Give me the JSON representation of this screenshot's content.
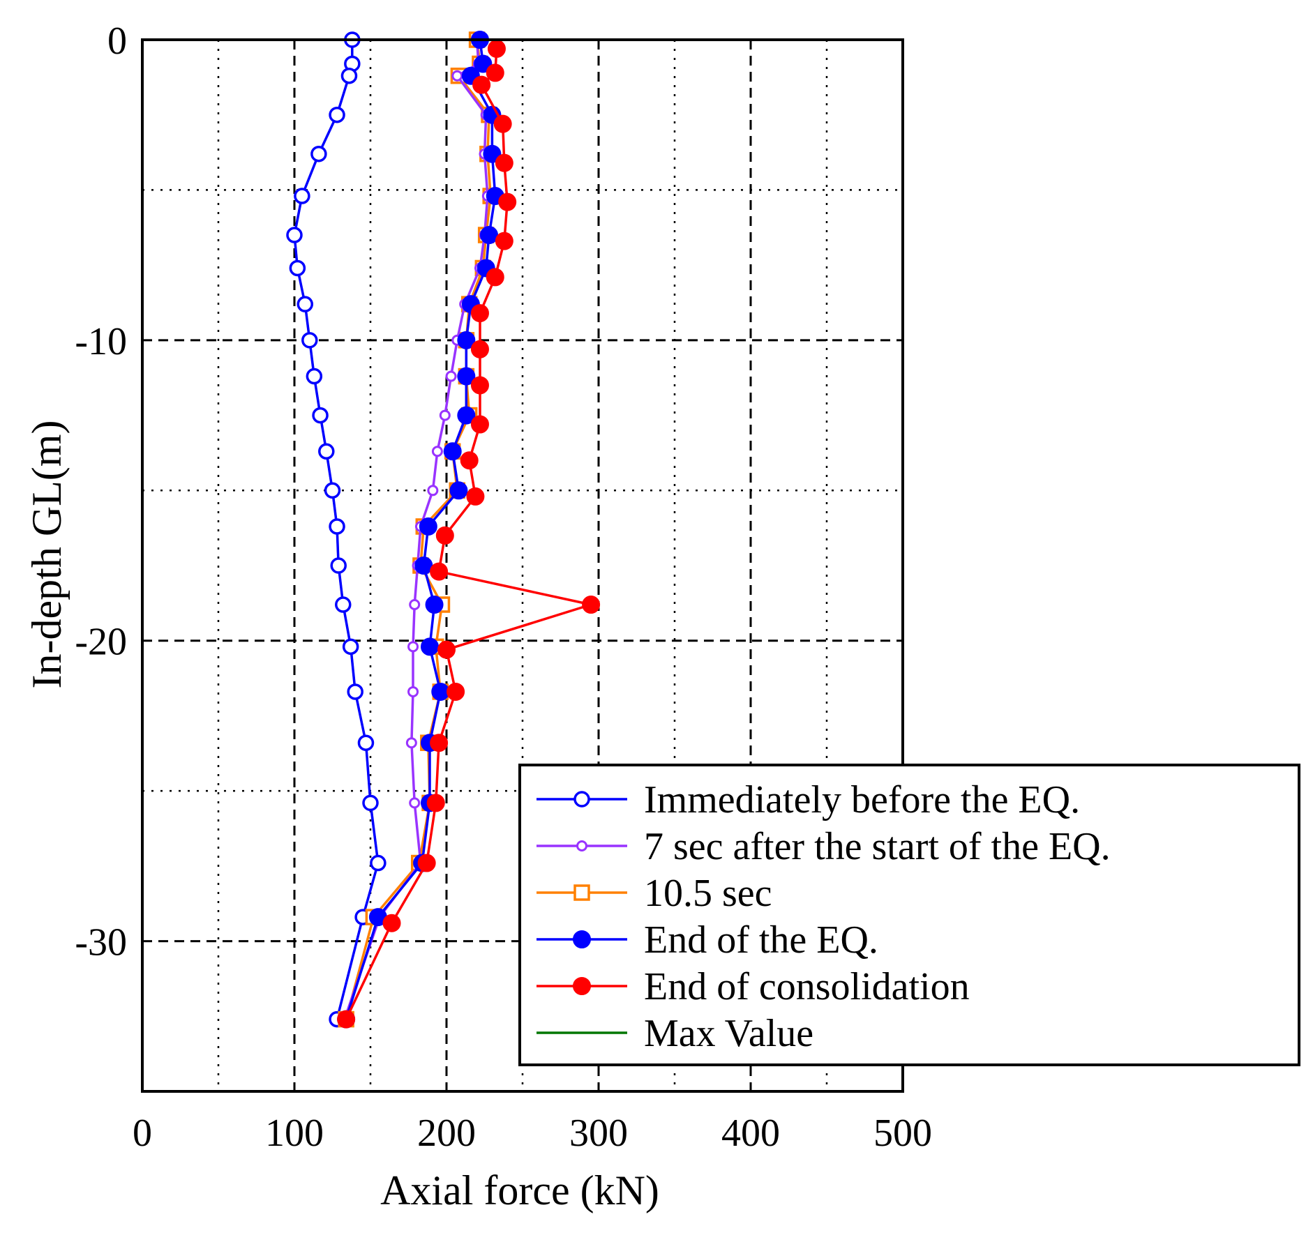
{
  "chart_data": {
    "type": "line",
    "title": "",
    "xlabel": "Axial force (kN)",
    "ylabel": "In-depth GL(m)",
    "xlim": [
      0,
      500
    ],
    "ylim": [
      -35,
      0
    ],
    "xticks": [
      "0",
      "100",
      "200",
      "300",
      "400",
      "500"
    ],
    "yticks": [
      "0",
      "-10",
      "-20",
      "-30"
    ],
    "legend_position": "bottom-right",
    "series": [
      {
        "name": "Immediately before the EQ.",
        "color": "#0000ff",
        "marker": "open-circle",
        "points": [
          [
            138,
            0
          ],
          [
            138,
            -0.8
          ],
          [
            136,
            -1.2
          ],
          [
            128,
            -2.5
          ],
          [
            116,
            -3.8
          ],
          [
            105,
            -5.2
          ],
          [
            100,
            -6.5
          ],
          [
            102,
            -7.6
          ],
          [
            107,
            -8.8
          ],
          [
            110,
            -10
          ],
          [
            113,
            -11.2
          ],
          [
            117,
            -12.5
          ],
          [
            121,
            -13.7
          ],
          [
            125,
            -15
          ],
          [
            128,
            -16.2
          ],
          [
            129,
            -17.5
          ],
          [
            132,
            -18.8
          ],
          [
            137,
            -20.2
          ],
          [
            140,
            -21.7
          ],
          [
            147,
            -23.4
          ],
          [
            150,
            -25.4
          ],
          [
            155,
            -27.4
          ],
          [
            145,
            -29.2
          ],
          [
            128,
            -32.6
          ]
        ]
      },
      {
        "name": "7 sec after the start of the EQ.",
        "color": "#9933ff",
        "marker": "small-open-circle",
        "points": [
          [
            220,
            0
          ],
          [
            221,
            -0.8
          ],
          [
            207,
            -1.2
          ],
          [
            226,
            -2.5
          ],
          [
            225,
            -3.8
          ],
          [
            227,
            -5.2
          ],
          [
            225,
            -6.5
          ],
          [
            222,
            -7.6
          ],
          [
            212,
            -8.8
          ],
          [
            207,
            -10
          ],
          [
            203,
            -11.2
          ],
          [
            199,
            -12.5
          ],
          [
            194,
            -13.7
          ],
          [
            191,
            -15
          ],
          [
            183,
            -16.2
          ],
          [
            181,
            -17.5
          ],
          [
            179,
            -18.8
          ],
          [
            178,
            -20.2
          ],
          [
            178,
            -21.7
          ],
          [
            177,
            -23.4
          ],
          [
            179,
            -25.4
          ],
          [
            183,
            -27.4
          ],
          [
            156,
            -29.2
          ],
          [
            133,
            -32.6
          ]
        ]
      },
      {
        "name": "10.5 sec",
        "color": "#ff8000",
        "marker": "open-square",
        "points": [
          [
            220,
            0
          ],
          [
            222,
            -0.8
          ],
          [
            208,
            -1.2
          ],
          [
            228,
            -2.5
          ],
          [
            227,
            -3.8
          ],
          [
            229,
            -5.2
          ],
          [
            226,
            -6.5
          ],
          [
            224,
            -7.6
          ],
          [
            215,
            -8.8
          ],
          [
            213,
            -10
          ],
          [
            213,
            -11.2
          ],
          [
            215,
            -12.5
          ],
          [
            204,
            -13.7
          ],
          [
            207,
            -15
          ],
          [
            185,
            -16.2
          ],
          [
            183,
            -17.5
          ],
          [
            197,
            -18.8
          ],
          [
            193,
            -20.2
          ],
          [
            196,
            -21.7
          ],
          [
            188,
            -23.4
          ],
          [
            189,
            -25.4
          ],
          [
            182,
            -27.4
          ],
          [
            152,
            -29.2
          ],
          [
            134,
            -32.6
          ]
        ]
      },
      {
        "name": "End of the EQ.",
        "color": "#0000ff",
        "marker": "filled-circle",
        "points": [
          [
            222,
            0
          ],
          [
            224,
            -0.8
          ],
          [
            216,
            -1.2
          ],
          [
            230,
            -2.5
          ],
          [
            230,
            -3.8
          ],
          [
            232,
            -5.2
          ],
          [
            228,
            -6.5
          ],
          [
            226,
            -7.6
          ],
          [
            216,
            -8.8
          ],
          [
            213,
            -10
          ],
          [
            213,
            -11.2
          ],
          [
            213,
            -12.5
          ],
          [
            204,
            -13.7
          ],
          [
            208,
            -15
          ],
          [
            188,
            -16.2
          ],
          [
            185,
            -17.5
          ],
          [
            192,
            -18.8
          ],
          [
            189,
            -20.2
          ],
          [
            196,
            -21.7
          ],
          [
            189,
            -23.4
          ],
          [
            189,
            -25.4
          ],
          [
            184,
            -27.4
          ],
          [
            155,
            -29.2
          ],
          [
            134,
            -32.6
          ]
        ]
      },
      {
        "name": "End of consolidation",
        "color": "#ff0000",
        "marker": "filled-circle",
        "points": [
          [
            233,
            -0.3
          ],
          [
            232,
            -1.1
          ],
          [
            223,
            -1.5
          ],
          [
            237,
            -2.8
          ],
          [
            238,
            -4.1
          ],
          [
            240,
            -5.4
          ],
          [
            238,
            -6.7
          ],
          [
            232,
            -7.9
          ],
          [
            222,
            -9.1
          ],
          [
            222,
            -10.3
          ],
          [
            222,
            -11.5
          ],
          [
            222,
            -12.8
          ],
          [
            215,
            -14
          ],
          [
            219,
            -15.2
          ],
          [
            199,
            -16.5
          ],
          [
            195,
            -17.7
          ],
          [
            295,
            -18.8
          ],
          [
            200,
            -20.3
          ],
          [
            206,
            -21.7
          ],
          [
            195,
            -23.4
          ],
          [
            193,
            -25.4
          ],
          [
            187,
            -27.4
          ],
          [
            164,
            -29.4
          ],
          [
            134,
            -32.6
          ]
        ]
      },
      {
        "name": "Max Value",
        "color": "#007700",
        "marker": "none",
        "points": [
          [
            138,
            0
          ],
          [
            138,
            -0.8
          ],
          [
            136,
            -1.2
          ],
          [
            128,
            -2.5
          ],
          [
            116,
            -3.8
          ],
          [
            105,
            -5.2
          ],
          [
            100,
            -6.5
          ],
          [
            102,
            -7.6
          ],
          [
            107,
            -8.8
          ],
          [
            110,
            -10
          ],
          [
            113,
            -11.2
          ],
          [
            117,
            -12.5
          ],
          [
            121,
            -13.7
          ],
          [
            125,
            -15
          ],
          [
            128,
            -16.2
          ],
          [
            129,
            -17.5
          ],
          [
            132,
            -18.8
          ],
          [
            137,
            -20.2
          ],
          [
            140,
            -21.7
          ],
          [
            147,
            -23.4
          ],
          [
            150,
            -25.4
          ],
          [
            155,
            -27.4
          ],
          [
            145,
            -29.2
          ],
          [
            128,
            -32.6
          ]
        ]
      }
    ]
  }
}
